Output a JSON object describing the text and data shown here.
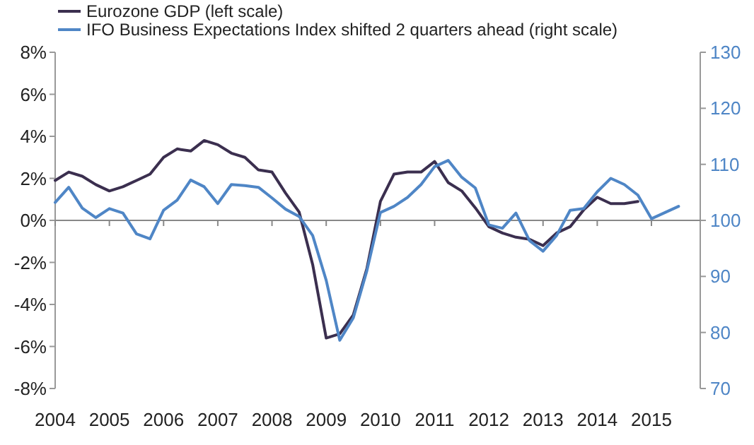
{
  "chart_data": {
    "type": "line",
    "xlim": [
      2004,
      2015.9
    ],
    "xticks": [
      2004,
      2005,
      2006,
      2007,
      2008,
      2009,
      2010,
      2011,
      2012,
      2013,
      2014,
      2015
    ],
    "ylim": [
      -8,
      8
    ],
    "yticks": [
      {
        "value": -8,
        "label": "-8%"
      },
      {
        "value": -6,
        "label": "-6%"
      },
      {
        "value": -4,
        "label": "-4%"
      },
      {
        "value": -2,
        "label": "-2%"
      },
      {
        "value": 0,
        "label": "0%"
      },
      {
        "value": 2,
        "label": "2%"
      },
      {
        "value": 4,
        "label": "4%"
      },
      {
        "value": 6,
        "label": "6%"
      },
      {
        "value": 8,
        "label": "8%"
      }
    ],
    "y2lim": [
      70,
      130
    ],
    "y2ticks": [
      70,
      80,
      90,
      100,
      110,
      120,
      130
    ],
    "legend": "top",
    "marker": "none",
    "line_style": "solid",
    "series": [
      {
        "name": "Eurozone GDP (left scale)",
        "color": "#3b2f4f",
        "x": [
          2004,
          2004.25,
          2004.5,
          2004.75,
          2005,
          2005.25,
          2005.5,
          2005.75,
          2006,
          2006.25,
          2006.5,
          2006.75,
          2007,
          2007.25,
          2007.5,
          2007.75,
          2008,
          2008.25,
          2008.5,
          2008.75,
          2009,
          2009.25,
          2009.5,
          2009.75,
          2010,
          2010.25,
          2010.5,
          2010.75,
          2011,
          2011.25,
          2011.5,
          2011.75,
          2012,
          2012.25,
          2012.5,
          2012.75,
          2013,
          2013.25,
          2013.5,
          2013.75,
          2014,
          2014.25,
          2014.5,
          2014.75
        ],
        "values": [
          1.9,
          2.3,
          2.1,
          1.7,
          1.4,
          1.6,
          1.9,
          2.2,
          3.0,
          3.4,
          3.3,
          3.8,
          3.6,
          3.2,
          3.0,
          2.4,
          2.3,
          1.3,
          0.4,
          -2.1,
          -5.6,
          -5.4,
          -4.5,
          -2.3,
          0.9,
          2.2,
          2.3,
          2.3,
          2.8,
          1.8,
          1.4,
          0.6,
          -0.3,
          -0.6,
          -0.8,
          -0.9,
          -1.2,
          -0.6,
          -0.3,
          0.5,
          1.1,
          0.8,
          0.8,
          0.9
        ]
      },
      {
        "name": "IFO Business Expectations Index shifted 2 quarters ahead (right scale)",
        "color": "#4f86c6",
        "axis": "y2",
        "x": [
          2004,
          2004.25,
          2004.5,
          2004.75,
          2005,
          2005.25,
          2005.5,
          2005.75,
          2006,
          2006.25,
          2006.5,
          2006.75,
          2007,
          2007.25,
          2007.5,
          2007.75,
          2008,
          2008.25,
          2008.5,
          2008.75,
          2009,
          2009.25,
          2009.5,
          2009.75,
          2010,
          2010.25,
          2010.5,
          2010.75,
          2011,
          2011.25,
          2011.5,
          2011.75,
          2012,
          2012.25,
          2012.5,
          2012.75,
          2013,
          2013.25,
          2013.5,
          2013.75,
          2014,
          2014.25,
          2014.5,
          2014.75,
          2015,
          2015.25,
          2015.5
        ],
        "values": [
          103.2,
          105.9,
          102.2,
          100.5,
          102.1,
          101.3,
          97.6,
          96.7,
          101.8,
          103.6,
          107.2,
          106.0,
          103.0,
          106.4,
          106.2,
          105.9,
          104.0,
          102.0,
          100.7,
          97.3,
          89.3,
          78.6,
          82.6,
          91.0,
          101.4,
          102.5,
          104.1,
          106.4,
          109.6,
          110.7,
          107.7,
          105.8,
          99.2,
          98.6,
          101.3,
          96.4,
          94.5,
          97.3,
          101.8,
          102.1,
          105.1,
          107.5,
          106.4,
          104.5,
          100.3,
          101.4,
          102.5
        ]
      }
    ]
  }
}
